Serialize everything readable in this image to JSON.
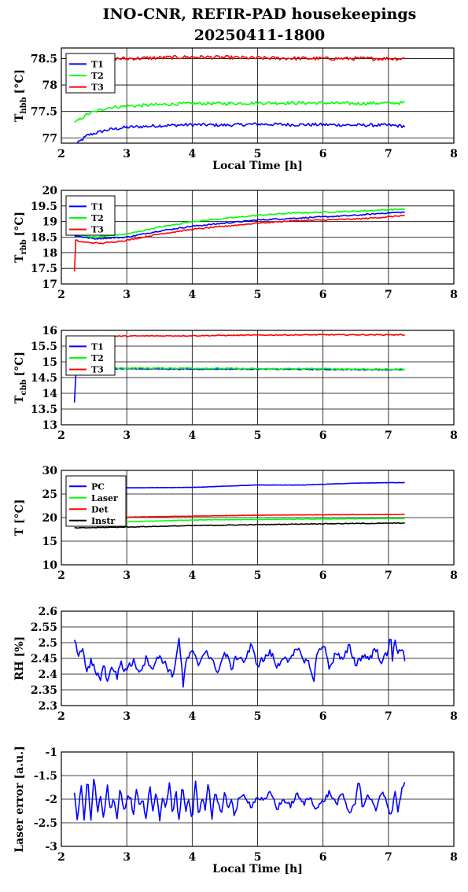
{
  "figure": {
    "title_line1": "INO-CNR, REFIR-PAD housekeepings",
    "title_line2": "20250411-1800"
  },
  "colors": {
    "blue": "#0000ff",
    "green": "#00ff00",
    "red": "#ff0000",
    "black": "#000000"
  },
  "chart_data": [
    {
      "type": "line",
      "xlabel": "Local Time [h]",
      "ylabel": "T",
      "ylabel_sub": "hbb",
      "ylabel_unit": "[°C]",
      "xlim": [
        2,
        8
      ],
      "ylim": [
        76.9,
        78.7
      ],
      "xticks": [
        "2",
        "3",
        "4",
        "5",
        "6",
        "7",
        "8"
      ],
      "yticks": [
        {
          "v": 77,
          "label": "77"
        },
        {
          "v": 77.5,
          "label": "77.5"
        },
        {
          "v": 78,
          "label": "78"
        },
        {
          "v": 78.5,
          "label": "78.5"
        }
      ],
      "grid": true,
      "legend_position": "top-left",
      "series": [
        {
          "name": "T1",
          "color": "blue",
          "x": [
            2.2,
            2.4,
            2.7,
            3,
            3.5,
            4,
            4.5,
            5,
            5.5,
            6,
            6.5,
            7,
            7.25
          ],
          "y": [
            76.85,
            77.05,
            77.15,
            77.2,
            77.23,
            77.25,
            77.24,
            77.26,
            77.25,
            77.25,
            77.24,
            77.24,
            77.22
          ],
          "noise": 0.03
        },
        {
          "name": "T2",
          "color": "green",
          "x": [
            2.2,
            2.4,
            2.7,
            3,
            3.5,
            4,
            4.5,
            5,
            5.5,
            6,
            6.5,
            7,
            7.25
          ],
          "y": [
            77.28,
            77.45,
            77.57,
            77.6,
            77.63,
            77.65,
            77.65,
            77.66,
            77.66,
            77.66,
            77.65,
            77.66,
            77.66
          ],
          "noise": 0.03
        },
        {
          "name": "T3",
          "color": "red",
          "x": [
            2.2,
            3,
            4,
            5,
            6,
            7,
            7.25
          ],
          "y": [
            78.5,
            78.5,
            78.53,
            78.51,
            78.5,
            78.5,
            78.5
          ],
          "noise": 0.035
        }
      ]
    },
    {
      "type": "line",
      "xlabel": "",
      "ylabel": "T",
      "ylabel_sub": "rbb",
      "ylabel_unit": "[°C]",
      "xlim": [
        2,
        8
      ],
      "ylim": [
        17,
        20
      ],
      "xticks": [
        "2",
        "3",
        "4",
        "5",
        "6",
        "7",
        "8"
      ],
      "yticks": [
        {
          "v": 17,
          "label": "17"
        },
        {
          "v": 17.5,
          "label": "17.5"
        },
        {
          "v": 18,
          "label": "18"
        },
        {
          "v": 18.5,
          "label": "18.5"
        },
        {
          "v": 19,
          "label": "19"
        },
        {
          "v": 19.5,
          "label": "19.5"
        },
        {
          "v": 20,
          "label": "20"
        }
      ],
      "grid": true,
      "legend_position": "top-left",
      "series": [
        {
          "name": "T1",
          "color": "blue",
          "x": [
            2.2,
            2.5,
            3,
            3.5,
            4,
            4.5,
            5,
            5.5,
            6,
            6.5,
            7,
            7.25
          ],
          "y": [
            18.55,
            18.45,
            18.5,
            18.7,
            18.85,
            18.95,
            19.05,
            19.1,
            19.15,
            19.2,
            19.28,
            19.3
          ],
          "noise": 0.02
        },
        {
          "name": "T2",
          "color": "green",
          "x": [
            2.2,
            2.5,
            3,
            3.5,
            4,
            4.5,
            5,
            5.5,
            6,
            6.5,
            7,
            7.25
          ],
          "y": [
            18.6,
            18.5,
            18.6,
            18.82,
            19,
            19.1,
            19.2,
            19.27,
            19.3,
            19.33,
            19.38,
            19.4
          ],
          "noise": 0.02
        },
        {
          "name": "T3",
          "color": "red",
          "x": [
            2.2,
            2.21,
            2.22,
            2.3,
            2.6,
            3,
            3.5,
            4,
            4.5,
            5,
            5.5,
            6,
            6.5,
            7,
            7.25
          ],
          "y": [
            17.4,
            18.1,
            18.4,
            18.35,
            18.3,
            18.4,
            18.6,
            18.75,
            18.85,
            18.95,
            19.02,
            19.05,
            19.08,
            19.15,
            19.2
          ],
          "noise": 0.02
        }
      ]
    },
    {
      "type": "line",
      "xlabel": "",
      "ylabel": "T",
      "ylabel_sub": "cbb",
      "ylabel_unit": "[°C]",
      "xlim": [
        2,
        8
      ],
      "ylim": [
        13,
        16
      ],
      "xticks": [
        "2",
        "3",
        "4",
        "5",
        "6",
        "7",
        "8"
      ],
      "yticks": [
        {
          "v": 13,
          "label": "13"
        },
        {
          "v": 13.5,
          "label": "13.5"
        },
        {
          "v": 14,
          "label": "14"
        },
        {
          "v": 14.5,
          "label": "14.5"
        },
        {
          "v": 15,
          "label": "15"
        },
        {
          "v": 15.5,
          "label": "15.5"
        },
        {
          "v": 16,
          "label": "16"
        }
      ],
      "grid": true,
      "legend_position": "top-left",
      "series": [
        {
          "name": "T1",
          "color": "blue",
          "x": [
            2.2,
            2.21,
            2.23,
            2.3,
            3,
            4,
            5,
            6,
            7,
            7.25
          ],
          "y": [
            13.7,
            14.4,
            14.75,
            14.78,
            14.78,
            14.77,
            14.77,
            14.76,
            14.75,
            14.75
          ],
          "noise": 0.015
        },
        {
          "name": "T2",
          "color": "green",
          "x": [
            2.3,
            3,
            4,
            5,
            6,
            7,
            7.25
          ],
          "y": [
            14.8,
            14.8,
            14.8,
            14.78,
            14.78,
            14.76,
            14.77
          ],
          "noise": 0.02
        },
        {
          "name": "T3",
          "color": "red",
          "x": [
            2.3,
            3,
            4,
            5,
            6,
            7,
            7.25
          ],
          "y": [
            15.8,
            15.82,
            15.83,
            15.85,
            15.86,
            15.86,
            15.86
          ],
          "noise": 0.015
        }
      ]
    },
    {
      "type": "line",
      "xlabel": "",
      "ylabel": "T [°C]",
      "ylabel_sub": "",
      "ylabel_unit": "",
      "xlim": [
        2,
        8
      ],
      "ylim": [
        10,
        30
      ],
      "xticks": [
        "2",
        "3",
        "4",
        "5",
        "6",
        "7",
        "8"
      ],
      "yticks": [
        {
          "v": 10,
          "label": "10"
        },
        {
          "v": 15,
          "label": "15"
        },
        {
          "v": 20,
          "label": "20"
        },
        {
          "v": 25,
          "label": "25"
        },
        {
          "v": 30,
          "label": "30"
        }
      ],
      "grid": true,
      "legend_position": "top-left",
      "series": [
        {
          "name": "PC",
          "color": "blue",
          "x": [
            2.2,
            3,
            4,
            5,
            5.7,
            6.1,
            6.5,
            7,
            7.25
          ],
          "y": [
            26.2,
            26.3,
            26.4,
            26.9,
            26.9,
            27.1,
            27.3,
            27.4,
            27.4
          ],
          "noise": 0.03
        },
        {
          "name": "Laser",
          "color": "green",
          "x": [
            2.2,
            3,
            3.5,
            4,
            5,
            6,
            7,
            7.25
          ],
          "y": [
            18.8,
            19.1,
            19.3,
            19.5,
            19.6,
            19.7,
            19.8,
            19.8
          ],
          "noise": 0.05
        },
        {
          "name": "Det",
          "color": "red",
          "x": [
            2.2,
            3,
            4,
            5,
            6,
            7,
            7.25
          ],
          "y": [
            19.9,
            20.1,
            20.3,
            20.5,
            20.6,
            20.65,
            20.65
          ],
          "noise": 0.03
        },
        {
          "name": "Instr",
          "color": "black",
          "x": [
            2.2,
            3,
            4,
            5,
            6,
            7,
            7.25
          ],
          "y": [
            17.8,
            18,
            18.3,
            18.5,
            18.7,
            18.8,
            18.85
          ],
          "noise": 0.07
        }
      ]
    },
    {
      "type": "line",
      "xlabel": "",
      "ylabel": "RH [%]",
      "ylabel_sub": "",
      "ylabel_unit": "",
      "xlim": [
        2,
        8
      ],
      "ylim": [
        2.3,
        2.6
      ],
      "xticks": [
        "2",
        "3",
        "4",
        "5",
        "6",
        "7",
        "8"
      ],
      "yticks": [
        {
          "v": 2.3,
          "label": "2.3"
        },
        {
          "v": 2.35,
          "label": "2.35"
        },
        {
          "v": 2.4,
          "label": "2.4"
        },
        {
          "v": 2.45,
          "label": "2.45"
        },
        {
          "v": 2.5,
          "label": "2.5"
        },
        {
          "v": 2.55,
          "label": "2.55"
        },
        {
          "v": 2.6,
          "label": "2.6"
        }
      ],
      "grid": true,
      "legend_position": "none",
      "series": [
        {
          "name": "",
          "color": "blue",
          "x": [
            2.2,
            2.25,
            2.28,
            2.32,
            2.36,
            2.4,
            2.45,
            2.5,
            2.55,
            2.6,
            2.65,
            2.7,
            2.75,
            2.8,
            2.85,
            2.9,
            2.95,
            3,
            3.1,
            3.2,
            3.3,
            3.4,
            3.5,
            3.6,
            3.7,
            3.8,
            3.83,
            3.86,
            3.9,
            4,
            4.1,
            4.2,
            4.3,
            4.4,
            4.5,
            4.6,
            4.7,
            4.8,
            4.9,
            5,
            5.1,
            5.2,
            5.3,
            5.4,
            5.5,
            5.6,
            5.7,
            5.8,
            5.86,
            5.9,
            6,
            6.1,
            6.2,
            6.3,
            6.4,
            6.5,
            6.6,
            6.7,
            6.8,
            6.9,
            7,
            7.03,
            7.06,
            7.1,
            7.15,
            7.2,
            7.25
          ],
          "y": [
            2.5,
            2.47,
            2.46,
            2.49,
            2.43,
            2.41,
            2.44,
            2.42,
            2.4,
            2.39,
            2.43,
            2.38,
            2.41,
            2.42,
            2.39,
            2.44,
            2.41,
            2.42,
            2.44,
            2.41,
            2.45,
            2.42,
            2.46,
            2.43,
            2.39,
            2.51,
            2.45,
            2.35,
            2.44,
            2.47,
            2.43,
            2.48,
            2.44,
            2.41,
            2.47,
            2.42,
            2.46,
            2.44,
            2.49,
            2.43,
            2.45,
            2.47,
            2.42,
            2.46,
            2.44,
            2.48,
            2.45,
            2.43,
            2.37,
            2.46,
            2.5,
            2.42,
            2.47,
            2.44,
            2.49,
            2.43,
            2.46,
            2.45,
            2.48,
            2.44,
            2.47,
            2.53,
            2.45,
            2.52,
            2.46,
            2.48,
            2.45
          ],
          "noise": 0.012
        }
      ]
    },
    {
      "type": "line",
      "xlabel": "Local Time [h]",
      "ylabel": "Laser error [a.u.]",
      "ylabel_sub": "",
      "ylabel_unit": "",
      "xlim": [
        2,
        8
      ],
      "ylim": [
        -3,
        -1
      ],
      "xticks": [
        "2",
        "3",
        "4",
        "5",
        "6",
        "7",
        "8"
      ],
      "yticks": [
        {
          "v": -3,
          "label": "-3"
        },
        {
          "v": -2.5,
          "label": "-2.5"
        },
        {
          "v": -2,
          "label": "-2"
        },
        {
          "v": -1.5,
          "label": "-1.5"
        },
        {
          "v": -1,
          "label": "-1"
        }
      ],
      "grid": true,
      "legend_position": "none",
      "series": [
        {
          "name": "",
          "color": "blue",
          "x": [
            2.2,
            2.25,
            2.3,
            2.35,
            2.4,
            2.45,
            2.5,
            2.55,
            2.6,
            2.65,
            2.7,
            2.75,
            2.8,
            2.85,
            2.9,
            2.95,
            3,
            3.05,
            3.1,
            3.15,
            3.2,
            3.25,
            3.3,
            3.35,
            3.4,
            3.45,
            3.5,
            3.55,
            3.6,
            3.65,
            3.7,
            3.75,
            3.8,
            3.85,
            3.9,
            3.95,
            4,
            4.05,
            4.1,
            4.15,
            4.2,
            4.25,
            4.3,
            4.35,
            4.4,
            4.45,
            4.5,
            4.55,
            4.6,
            4.65,
            4.7,
            4.8,
            4.9,
            5,
            5.1,
            5.2,
            5.3,
            5.4,
            5.5,
            5.6,
            5.7,
            5.8,
            5.9,
            6,
            6.1,
            6.2,
            6.3,
            6.4,
            6.5,
            6.55,
            6.6,
            6.7,
            6.8,
            6.9,
            7,
            7.05,
            7.1,
            7.15,
            7.2,
            7.25
          ],
          "y": [
            -1.85,
            -2.5,
            -1.6,
            -2.45,
            -1.55,
            -2.5,
            -1.5,
            -2.3,
            -1.9,
            -2.45,
            -1.7,
            -2.2,
            -2.0,
            -2.4,
            -1.8,
            -2.25,
            -2.05,
            -1.9,
            -2.4,
            -1.7,
            -2.2,
            -2.0,
            -2.5,
            -1.65,
            -2.3,
            -1.75,
            -2.45,
            -1.9,
            -2.2,
            -1.6,
            -2.35,
            -1.8,
            -2.5,
            -1.7,
            -2.3,
            -2.0,
            -2.55,
            -1.55,
            -2.4,
            -1.9,
            -2.2,
            -1.6,
            -2.45,
            -1.8,
            -2.1,
            -2.35,
            -1.85,
            -2.2,
            -1.95,
            -2.4,
            -2.05,
            -1.9,
            -2.15,
            -1.95,
            -2.05,
            -1.85,
            -2.2,
            -2.0,
            -2.15,
            -1.9,
            -2.1,
            -1.95,
            -2.2,
            -2.05,
            -1.85,
            -2.1,
            -1.9,
            -2.3,
            -2.05,
            -1.55,
            -2.15,
            -1.9,
            -2.25,
            -1.8,
            -2.2,
            -2.4,
            -1.75,
            -2.3,
            -1.8,
            -1.65
          ],
          "noise": 0.06
        }
      ]
    }
  ]
}
